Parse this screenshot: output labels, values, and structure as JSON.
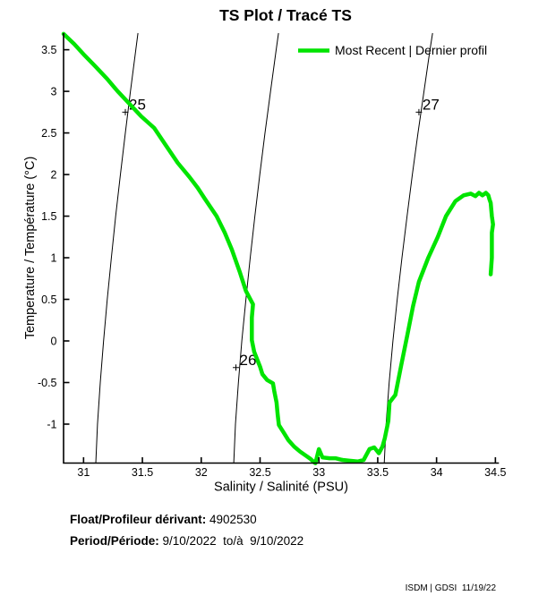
{
  "chart_data": {
    "type": "line",
    "title": "TS Plot / Tracé TS",
    "xlabel": "Salinity / Salinité (PSU)",
    "ylabel": "Temperature / Température (°C)",
    "xlim": [
      30.83,
      34.53
    ],
    "ylim": [
      -1.468,
      3.7
    ],
    "xticks": [
      31,
      31.5,
      32,
      32.5,
      33,
      33.5,
      34,
      34.5
    ],
    "yticks": [
      3.5,
      3,
      2.5,
      2,
      1.5,
      1,
      0.5,
      0,
      -0.5,
      -1
    ],
    "grid": false,
    "legend": {
      "position": "top-right",
      "label": "Most Recent | Dernier profil"
    },
    "series": [
      {
        "name": "Most Recent | Dernier profil",
        "color": "#00e400",
        "line_width": 4.5,
        "points": [
          [
            30.83,
            3.69
          ],
          [
            30.92,
            3.57
          ],
          [
            31.01,
            3.43
          ],
          [
            31.1,
            3.3
          ],
          [
            31.2,
            3.15
          ],
          [
            31.29,
            3.0
          ],
          [
            31.39,
            2.85
          ],
          [
            31.49,
            2.7
          ],
          [
            31.6,
            2.56
          ],
          [
            31.7,
            2.35
          ],
          [
            31.8,
            2.14
          ],
          [
            31.9,
            1.97
          ],
          [
            31.97,
            1.84
          ],
          [
            32.03,
            1.71
          ],
          [
            32.13,
            1.5
          ],
          [
            32.2,
            1.3
          ],
          [
            32.26,
            1.1
          ],
          [
            32.33,
            0.82
          ],
          [
            32.38,
            0.6
          ],
          [
            32.44,
            0.44
          ],
          [
            32.43,
            0.28
          ],
          [
            32.43,
            0.15
          ],
          [
            32.43,
            0.01
          ],
          [
            32.45,
            -0.13
          ],
          [
            32.5,
            -0.31
          ],
          [
            32.52,
            -0.4
          ],
          [
            32.56,
            -0.47
          ],
          [
            32.61,
            -0.51
          ],
          [
            32.62,
            -0.6
          ],
          [
            32.64,
            -0.74
          ],
          [
            32.65,
            -0.89
          ],
          [
            32.66,
            -1.01
          ],
          [
            32.7,
            -1.1
          ],
          [
            32.74,
            -1.19
          ],
          [
            32.79,
            -1.27
          ],
          [
            32.84,
            -1.33
          ],
          [
            32.89,
            -1.38
          ],
          [
            32.93,
            -1.42
          ],
          [
            32.96,
            -1.46
          ],
          [
            32.97,
            -1.47
          ],
          [
            33.0,
            -1.3
          ],
          [
            33.03,
            -1.4
          ],
          [
            33.09,
            -1.41
          ],
          [
            33.14,
            -1.41
          ],
          [
            33.2,
            -1.43
          ],
          [
            33.26,
            -1.44
          ],
          [
            33.33,
            -1.45
          ],
          [
            33.38,
            -1.43
          ],
          [
            33.43,
            -1.3
          ],
          [
            33.47,
            -1.28
          ],
          [
            33.51,
            -1.35
          ],
          [
            33.54,
            -1.27
          ],
          [
            33.56,
            -1.17
          ],
          [
            33.59,
            -0.96
          ],
          [
            33.6,
            -0.74
          ],
          [
            33.65,
            -0.65
          ],
          [
            33.7,
            -0.29
          ],
          [
            33.75,
            0.06
          ],
          [
            33.8,
            0.42
          ],
          [
            33.85,
            0.71
          ],
          [
            33.93,
            1.0
          ],
          [
            34.01,
            1.25
          ],
          [
            34.08,
            1.5
          ],
          [
            34.16,
            1.68
          ],
          [
            34.23,
            1.75
          ],
          [
            34.29,
            1.77
          ],
          [
            34.33,
            1.74
          ],
          [
            34.36,
            1.78
          ],
          [
            34.39,
            1.75
          ],
          [
            34.42,
            1.78
          ],
          [
            34.44,
            1.75
          ],
          [
            34.45,
            1.7
          ],
          [
            34.46,
            1.66
          ],
          [
            34.47,
            1.5
          ],
          [
            34.48,
            1.4
          ],
          [
            34.47,
            1.3
          ],
          [
            34.47,
            1.15
          ],
          [
            34.47,
            1.0
          ],
          [
            34.46,
            0.8
          ]
        ]
      }
    ],
    "isopycnals": [
      {
        "label": "25",
        "label_at": [
          31.355,
          2.75
        ],
        "points": [
          [
            31.104,
            -1.47
          ],
          [
            31.118,
            -1.0
          ],
          [
            31.142,
            -0.5
          ],
          [
            31.17,
            0
          ],
          [
            31.201,
            0.5
          ],
          [
            31.236,
            1.0
          ],
          [
            31.273,
            1.5
          ],
          [
            31.313,
            2.0
          ],
          [
            31.355,
            2.5
          ],
          [
            31.398,
            3.0
          ],
          [
            31.444,
            3.5
          ],
          [
            31.462,
            3.7
          ]
        ]
      },
      {
        "label": "26",
        "label_at": [
          32.295,
          -0.32
        ],
        "points": [
          [
            32.276,
            -1.47
          ],
          [
            32.291,
            -1.0
          ],
          [
            32.316,
            -0.5
          ],
          [
            32.345,
            0
          ],
          [
            32.38,
            0.5
          ],
          [
            32.416,
            1.0
          ],
          [
            32.456,
            1.5
          ],
          [
            32.498,
            2.0
          ],
          [
            32.542,
            2.5
          ],
          [
            32.589,
            3.0
          ],
          [
            32.637,
            3.5
          ],
          [
            32.657,
            3.7
          ]
        ]
      },
      {
        "label": "27",
        "label_at": [
          33.85,
          2.75
        ],
        "points": [
          [
            33.555,
            -1.47
          ],
          [
            33.571,
            -1.0
          ],
          [
            33.597,
            -0.5
          ],
          [
            33.629,
            0
          ],
          [
            33.666,
            0.5
          ],
          [
            33.706,
            1.0
          ],
          [
            33.749,
            1.5
          ],
          [
            33.794,
            2.0
          ],
          [
            33.842,
            2.5
          ],
          [
            33.893,
            3.0
          ],
          [
            33.944,
            3.5
          ],
          [
            33.966,
            3.7
          ]
        ]
      }
    ]
  },
  "footer": {
    "float_label": "Float/Profileur dérivant:",
    "float_value": " 4902530",
    "period_label": "Period/Période:",
    "period_value": " 9/10/2022  to/à  9/10/2022",
    "credit": "ISDM | GDSI  11/19/22"
  }
}
